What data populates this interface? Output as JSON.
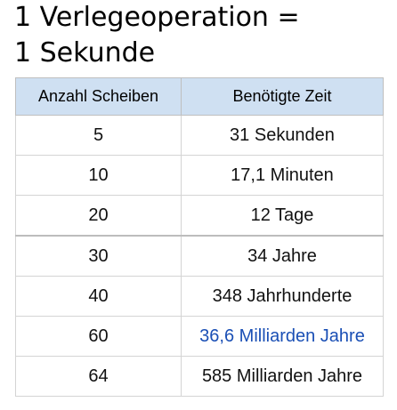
{
  "heading": {
    "line1": "1 Verlegeoperation =",
    "line2": "1 Sekunde"
  },
  "table": {
    "columns": [
      "Anzahl Scheiben",
      "Benötigte Zeit"
    ],
    "rows": [
      {
        "disks": "5",
        "time": "31 Sekunden"
      },
      {
        "disks": "10",
        "time": "17,1 Minuten"
      },
      {
        "disks": "20",
        "time": "12 Tage"
      },
      {
        "disks": "30",
        "time": "34 Jahre"
      },
      {
        "disks": "40",
        "time": "348 Jahrhunderte"
      },
      {
        "disks": "60",
        "time": "36,6 Milliarden Jahre"
      },
      {
        "disks": "64",
        "time": "585 Milliarden Jahre"
      }
    ]
  },
  "colors": {
    "header_background": "#cfe0f2",
    "link_text": "#1a4fb5",
    "border": "#d4d4d4"
  }
}
